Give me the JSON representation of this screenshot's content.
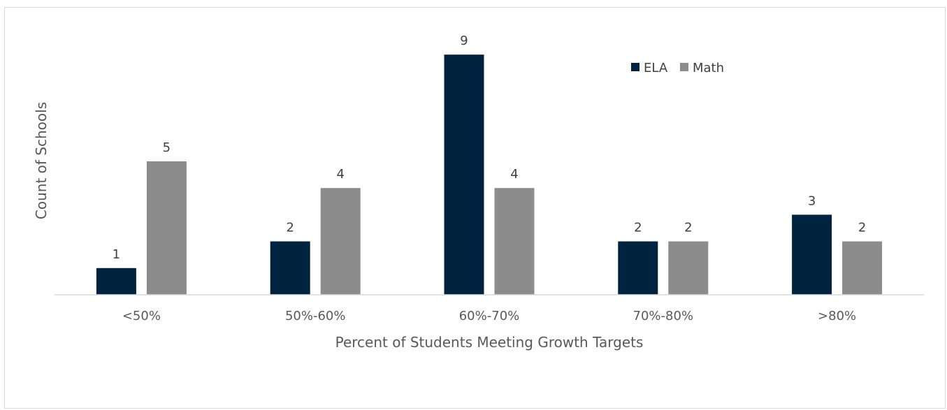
{
  "chart_data": {
    "type": "bar",
    "categories": [
      "<50%",
      "50%-60%",
      "60%-70%",
      "70%-80%",
      ">80%"
    ],
    "series": [
      {
        "name": "ELA",
        "values": [
          1,
          2,
          9,
          2,
          3
        ],
        "color": "#002340"
      },
      {
        "name": "Math",
        "values": [
          5,
          4,
          4,
          2,
          2
        ],
        "color": "#8c8c8c"
      }
    ],
    "title": "",
    "xlabel": "Percent of Students Meeting Growth Targets",
    "ylabel": "Count of Schools",
    "ylim": [
      0,
      9
    ],
    "grid": false,
    "legend_position": "top-right",
    "data_labels": true
  }
}
